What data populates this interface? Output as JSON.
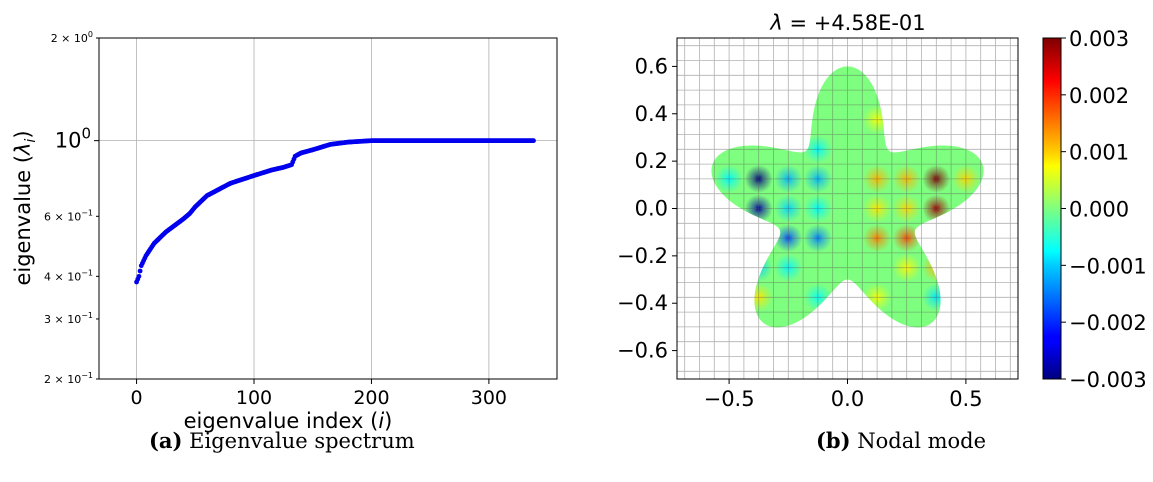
{
  "chart_data": [
    {
      "type": "scatter",
      "title": "",
      "xlabel": "eigenvalue index (i)",
      "ylabel": "eigenvalue (λi)",
      "y_scale": "log",
      "xlim": [
        -32,
        358
      ],
      "ylim": [
        0.2,
        2.0
      ],
      "grid": true,
      "x_ticks": [
        {
          "value": 0,
          "label": "0"
        },
        {
          "value": 100,
          "label": "100"
        },
        {
          "value": 200,
          "label": "200"
        },
        {
          "value": 300,
          "label": "300"
        }
      ],
      "y_ticks": [
        {
          "value": 2.0,
          "base": "2 × 10",
          "exp": "0",
          "major": false
        },
        {
          "value": 1.0,
          "base": "10",
          "exp": "0",
          "major": true
        },
        {
          "value": 0.6,
          "base": "6 × 10",
          "exp": "−1",
          "major": false
        },
        {
          "value": 0.4,
          "base": "4 × 10",
          "exp": "−1",
          "major": false
        },
        {
          "value": 0.3,
          "base": "3 × 10",
          "exp": "−1",
          "major": false
        },
        {
          "value": 0.2,
          "base": "2 × 10",
          "exp": "−1",
          "major": false
        }
      ],
      "series": [
        {
          "color": "#0000ee",
          "n_points": 339,
          "curve": [
            [
              0,
              0.385
            ],
            [
              2,
              0.4
            ],
            [
              4,
              0.43
            ],
            [
              8,
              0.46
            ],
            [
              15,
              0.5
            ],
            [
              25,
              0.54
            ],
            [
              40,
              0.59
            ],
            [
              45,
              0.61
            ],
            [
              50,
              0.64
            ],
            [
              60,
              0.69
            ],
            [
              80,
              0.75
            ],
            [
              100,
              0.79
            ],
            [
              115,
              0.82
            ],
            [
              125,
              0.835
            ],
            [
              132,
              0.85
            ],
            [
              135,
              0.9
            ],
            [
              140,
              0.92
            ],
            [
              150,
              0.94
            ],
            [
              165,
              0.975
            ],
            [
              180,
              0.99
            ],
            [
              200,
              1.0
            ],
            [
              338,
              1.0
            ]
          ]
        }
      ]
    },
    {
      "type": "heatmap",
      "title": "λ =  +4.58E-01",
      "xlim": [
        -0.72,
        0.72
      ],
      "ylim": [
        -0.72,
        0.72
      ],
      "x_ticks": [
        "−0.5",
        "0.0",
        "0.5"
      ],
      "y_ticks": [
        "0.6",
        "0.4",
        "0.2",
        "0.0",
        "−0.2",
        "−0.4",
        "−0.6"
      ],
      "grid": true,
      "colormap": "jet",
      "colorbar": {
        "min": -0.003,
        "max": 0.003,
        "ticks": [
          "0.003",
          "0.002",
          "0.001",
          "0.000",
          "−0.001",
          "−0.002",
          "−0.003"
        ]
      },
      "domain": {
        "shape": "five-lobed star",
        "fill": "#7fff7f"
      },
      "nodes": [
        {
          "x": -0.375,
          "y": 0.125,
          "v": -0.003
        },
        {
          "x": -0.375,
          "y": 0.0,
          "v": -0.0028
        },
        {
          "x": -0.375,
          "y": -0.125,
          "v": -0.003
        },
        {
          "x": -0.375,
          "y": -0.25,
          "v": -0.001
        },
        {
          "x": -0.375,
          "y": -0.375,
          "v": 0.0009
        },
        {
          "x": -0.25,
          "y": 0.125,
          "v": -0.0012
        },
        {
          "x": -0.25,
          "y": 0.0,
          "v": -0.001
        },
        {
          "x": -0.25,
          "y": -0.125,
          "v": -0.0018
        },
        {
          "x": -0.25,
          "y": -0.25,
          "v": -0.0008
        },
        {
          "x": -0.125,
          "y": 0.25,
          "v": -0.0008
        },
        {
          "x": -0.125,
          "y": 0.125,
          "v": -0.0012
        },
        {
          "x": -0.125,
          "y": 0.0,
          "v": -0.0008
        },
        {
          "x": -0.125,
          "y": -0.125,
          "v": -0.0015
        },
        {
          "x": -0.125,
          "y": -0.375,
          "v": -0.0007
        },
        {
          "x": 0.125,
          "y": 0.125,
          "v": 0.0012
        },
        {
          "x": 0.125,
          "y": 0.0,
          "v": 0.0009
        },
        {
          "x": 0.125,
          "y": -0.125,
          "v": 0.0015
        },
        {
          "x": 0.125,
          "y": -0.375,
          "v": 0.0007
        },
        {
          "x": 0.125,
          "y": 0.375,
          "v": 0.0007
        },
        {
          "x": 0.25,
          "y": 0.125,
          "v": 0.0012
        },
        {
          "x": 0.25,
          "y": 0.0,
          "v": 0.001
        },
        {
          "x": 0.25,
          "y": -0.125,
          "v": 0.0018
        },
        {
          "x": 0.25,
          "y": -0.25,
          "v": 0.0008
        },
        {
          "x": 0.375,
          "y": 0.125,
          "v": 0.003
        },
        {
          "x": 0.375,
          "y": 0.0,
          "v": 0.0028
        },
        {
          "x": 0.375,
          "y": -0.125,
          "v": 0.003
        },
        {
          "x": 0.375,
          "y": -0.25,
          "v": 0.0012
        },
        {
          "x": 0.375,
          "y": -0.375,
          "v": -0.0009
        },
        {
          "x": 0.5,
          "y": 0.125,
          "v": 0.001
        },
        {
          "x": -0.5,
          "y": 0.125,
          "v": -0.0008
        }
      ]
    }
  ],
  "captions": [
    {
      "label": "(a)",
      "text": " Eigenvalue spectrum"
    },
    {
      "label": "(b)",
      "text": " Nodal mode"
    }
  ]
}
